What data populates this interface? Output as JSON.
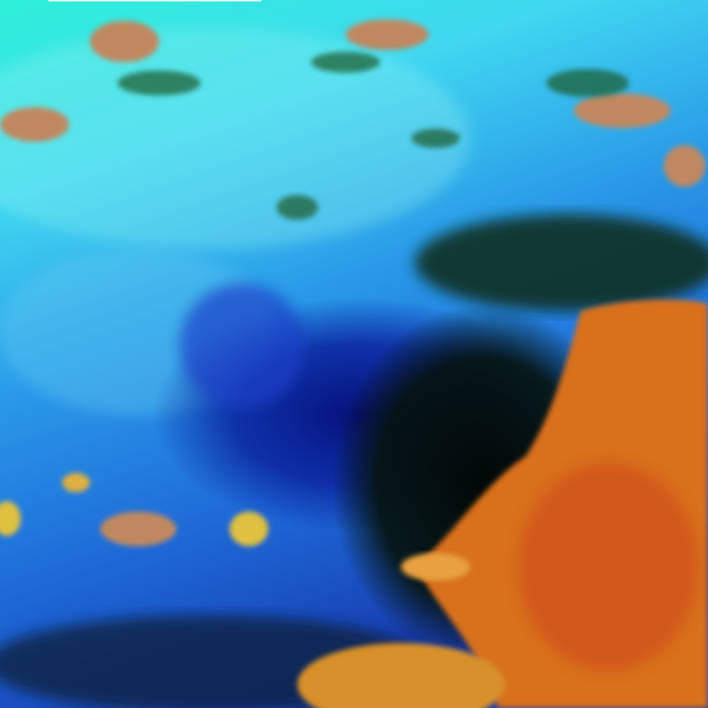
{
  "image": {
    "kind": "false-color satellite view of cloud cover",
    "colors": {
      "cloud_cyan": "#2ef0d8",
      "cloud_light_blue": "#40c8f0",
      "cloud_mid_blue": "#1e7fe0",
      "deep_blue": "#0a1e9a",
      "dark_surface": "#05120a",
      "low_cloud_orange": "#d8701c",
      "land_tan": "#c08860",
      "vegetation_green": "#1f5a2a"
    }
  }
}
